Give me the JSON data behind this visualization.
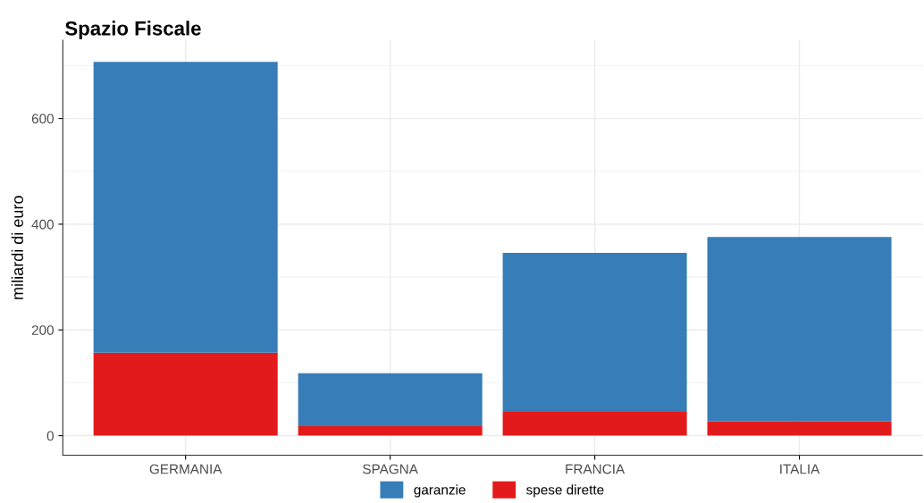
{
  "chart_data": {
    "type": "bar",
    "title": "Spazio Fiscale",
    "ylabel": "miliardi di euro",
    "categories": [
      "GERMANIA",
      "SPAGNA",
      "FRANCIA",
      "ITALIA"
    ],
    "stacked": true,
    "series": [
      {
        "name": "spese dirette",
        "color": "#e31a1c",
        "values": [
          157,
          18,
          45,
          27
        ]
      },
      {
        "name": "garanzie",
        "color": "#377eb8",
        "values": [
          550,
          100,
          301,
          349
        ]
      }
    ],
    "ylim": [
      -37,
      748
    ],
    "yticks": [
      0,
      200,
      400,
      600
    ],
    "grid": true,
    "legend": "bottom"
  }
}
